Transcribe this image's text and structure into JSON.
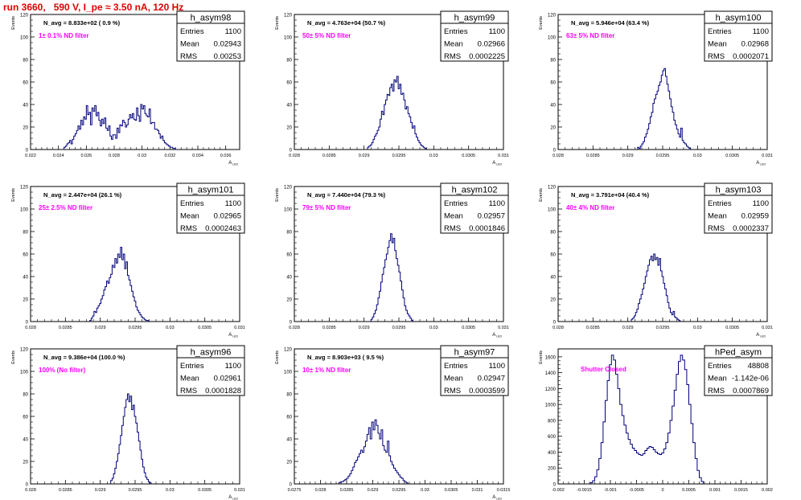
{
  "page": {
    "title": "run 3660,   590 V, I_pe ≈ 3.50 nA, 120 Hz"
  },
  "chart_data": [
    {
      "type": "histogram",
      "name": "h_asym98",
      "stats": {
        "entries": "1100",
        "mean": "0.02943",
        "rms": "0.00253"
      },
      "navg_label": "N_avg = 8.833e+02 ( 0.9 %)",
      "filter_label": "1± 0.1% ND filter",
      "xlabel": "A_LED",
      "ylabel": "Events",
      "xlim": [
        0.022,
        0.037
      ],
      "ylim": [
        0,
        120
      ],
      "xticks": [
        0.022,
        0.024,
        0.026,
        0.028,
        0.03,
        0.032,
        0.034,
        0.036
      ],
      "xtick_labels": [
        "0.022",
        "0.024",
        "0.026",
        "0.028",
        "0.03",
        "0.032",
        "0.034",
        "0.036"
      ],
      "yticks": [
        0,
        20,
        40,
        60,
        80,
        100,
        120
      ],
      "bins": {
        "lo": 0.0244,
        "width": 0.0001,
        "values": [
          2,
          3,
          5,
          6,
          8,
          5,
          9,
          12,
          14,
          17,
          21,
          18,
          26,
          22,
          29,
          27,
          39,
          31,
          33,
          22,
          37,
          34,
          39,
          30,
          33,
          26,
          21,
          27,
          23,
          28,
          19,
          17,
          21,
          12,
          9,
          13,
          13,
          10,
          19,
          15,
          22,
          21,
          26,
          24,
          20,
          22,
          27,
          31,
          28,
          32,
          27,
          26,
          37,
          30,
          25,
          40,
          36,
          39,
          32,
          30,
          29,
          36,
          23,
          24,
          24,
          18,
          18,
          17,
          14,
          10,
          12,
          8,
          6,
          5,
          4,
          3,
          2,
          2,
          1,
          1,
          0
        ]
      }
    },
    {
      "type": "histogram",
      "name": "h_asym99",
      "stats": {
        "entries": "1100",
        "mean": "0.02966",
        "rms": "0.0002225"
      },
      "navg_label": "N_avg = 4.763e+04 (50.7 %)",
      "filter_label": "50± 5% ND filter",
      "xlabel": "A_LED",
      "ylabel": "Events",
      "xlim": [
        0.028,
        0.031
      ],
      "ylim": [
        0,
        120
      ],
      "xticks": [
        0.028,
        0.0285,
        0.029,
        0.0295,
        0.03,
        0.0305,
        0.031
      ],
      "xtick_labels": [
        "0.028",
        "0.0285",
        "0.029",
        "0.0295",
        "0.03",
        "0.0305",
        "0.031"
      ],
      "yticks": [
        0,
        20,
        40,
        60,
        80,
        100,
        120
      ],
      "bins": {
        "lo": 0.02905,
        "width": 2e-05,
        "values": [
          2,
          3,
          4,
          6,
          9,
          12,
          14,
          17,
          20,
          27,
          34,
          31,
          40,
          44,
          49,
          48,
          55,
          58,
          52,
          62,
          60,
          65,
          54,
          58,
          49,
          50,
          44,
          36,
          38,
          32,
          29,
          24,
          19,
          21,
          14,
          11,
          8,
          6,
          4,
          3,
          2,
          1
        ]
      }
    },
    {
      "type": "histogram",
      "name": "h_asym100",
      "stats": {
        "entries": "1100",
        "mean": "0.02968",
        "rms": "0.0002071"
      },
      "navg_label": "N_avg = 5.946e+04 (63.4 %)",
      "filter_label": "63± 5% ND filter",
      "xlabel": "A_LED",
      "ylabel": "Events",
      "xlim": [
        0.028,
        0.031
      ],
      "ylim": [
        0,
        120
      ],
      "xticks": [
        0.028,
        0.0285,
        0.029,
        0.0295,
        0.03,
        0.0305,
        0.031
      ],
      "xtick_labels": [
        "0.028",
        "0.0285",
        "0.029",
        "0.0295",
        "0.03",
        "0.0305",
        "0.031"
      ],
      "yticks": [
        0,
        20,
        40,
        60,
        80,
        100,
        120
      ],
      "bins": {
        "lo": 0.02914,
        "width": 2e-05,
        "values": [
          2,
          1,
          3,
          5,
          7,
          11,
          14,
          18,
          23,
          29,
          33,
          41,
          45,
          49,
          52,
          57,
          60,
          66,
          70,
          72,
          65,
          58,
          52,
          45,
          38,
          33,
          26,
          22,
          18,
          14,
          11,
          19,
          8,
          6,
          5,
          3,
          2,
          1
        ]
      }
    },
    {
      "type": "histogram",
      "name": "h_asym101",
      "stats": {
        "entries": "1100",
        "mean": "0.02965",
        "rms": "0.0002463"
      },
      "navg_label": "N_avg = 2.447e+04 (26.1 %)",
      "filter_label": "25± 2.5% ND filter",
      "xlabel": "A_LED",
      "ylabel": "Events",
      "xlim": [
        0.028,
        0.031
      ],
      "ylim": [
        0,
        120
      ],
      "xticks": [
        0.028,
        0.0285,
        0.029,
        0.0295,
        0.03,
        0.0305,
        0.031
      ],
      "xtick_labels": [
        "0.028",
        "0.0285",
        "0.029",
        "0.0295",
        "0.03",
        "0.0305",
        "0.031"
      ],
      "yticks": [
        0,
        20,
        40,
        60,
        80,
        100,
        120
      ],
      "bins": {
        "lo": 0.02885,
        "width": 2e-05,
        "values": [
          1,
          3,
          5,
          9,
          8,
          12,
          14,
          16,
          20,
          23,
          28,
          31,
          36,
          34,
          39,
          42,
          50,
          48,
          56,
          52,
          60,
          57,
          66,
          55,
          60,
          47,
          53,
          41,
          37,
          32,
          27,
          22,
          18,
          13,
          10,
          8,
          6,
          4,
          3,
          2,
          1,
          1
        ]
      }
    },
    {
      "type": "histogram",
      "name": "h_asym102",
      "stats": {
        "entries": "1100",
        "mean": "0.02957",
        "rms": "0.0001846"
      },
      "navg_label": "N_avg = 7.440e+04 (79.3 %)",
      "filter_label": "79± 5% ND filter",
      "xlabel": "A_LED",
      "ylabel": "Events",
      "xlim": [
        0.028,
        0.031
      ],
      "ylim": [
        0,
        120
      ],
      "xticks": [
        0.028,
        0.0285,
        0.029,
        0.0295,
        0.03,
        0.0305,
        0.031
      ],
      "xtick_labels": [
        "0.028",
        "0.0285",
        "0.029",
        "0.0295",
        "0.03",
        "0.0305",
        "0.031"
      ],
      "yticks": [
        0,
        20,
        40,
        60,
        80,
        100,
        120
      ],
      "bins": {
        "lo": 0.0291,
        "width": 2e-05,
        "values": [
          2,
          4,
          7,
          10,
          15,
          21,
          27,
          35,
          42,
          48,
          55,
          60,
          66,
          72,
          78,
          70,
          74,
          63,
          56,
          50,
          44,
          36,
          28,
          21,
          14,
          10,
          7,
          5,
          3,
          1
        ]
      }
    },
    {
      "type": "histogram",
      "name": "h_asym103",
      "stats": {
        "entries": "1100",
        "mean": "0.02959",
        "rms": "0.0002337"
      },
      "navg_label": "N_avg = 3.791e+04 (40.4 %)",
      "filter_label": "40± 4% ND filter",
      "xlabel": "A_LED",
      "ylabel": "Events",
      "xlim": [
        0.028,
        0.031
      ],
      "ylim": [
        0,
        120
      ],
      "xticks": [
        0.028,
        0.0285,
        0.029,
        0.0295,
        0.03,
        0.0305,
        0.031
      ],
      "xtick_labels": [
        "0.028",
        "0.0285",
        "0.029",
        "0.0295",
        "0.03",
        "0.0305",
        "0.031"
      ],
      "yticks": [
        0,
        20,
        40,
        60,
        80,
        100,
        120
      ],
      "bins": {
        "lo": 0.02905,
        "width": 2e-05,
        "values": [
          2,
          3,
          5,
          8,
          11,
          16,
          20,
          24,
          29,
          34,
          40,
          45,
          50,
          55,
          58,
          54,
          60,
          55,
          57,
          50,
          56,
          45,
          40,
          34,
          29,
          23,
          17,
          12,
          8,
          6,
          9,
          4,
          3,
          2,
          1
        ]
      }
    },
    {
      "type": "histogram",
      "name": "h_asym96",
      "stats": {
        "entries": "1100",
        "mean": "0.02961",
        "rms": "0.0001828"
      },
      "navg_label": "N_avg = 9.386e+04 (100.0 %)",
      "filter_label": "100% (No filter)",
      "xlabel": "A_LED",
      "ylabel": "Events",
      "xlim": [
        0.028,
        0.031
      ],
      "ylim": [
        0,
        120
      ],
      "xticks": [
        0.028,
        0.0285,
        0.029,
        0.0295,
        0.03,
        0.0305,
        0.031
      ],
      "xtick_labels": [
        "0.028",
        "0.0285",
        "0.029",
        "0.0295",
        "0.03",
        "0.0305",
        "0.031"
      ],
      "yticks": [
        0,
        20,
        40,
        60,
        80,
        100,
        120
      ],
      "bins": {
        "lo": 0.02915,
        "width": 2e-05,
        "values": [
          3,
          5,
          9,
          14,
          20,
          27,
          35,
          43,
          52,
          60,
          68,
          75,
          80,
          73,
          78,
          66,
          70,
          60,
          54,
          46,
          38,
          30,
          22,
          15,
          10,
          6,
          4,
          2,
          1
        ]
      }
    },
    {
      "type": "histogram",
      "name": "h_asym97",
      "stats": {
        "entries": "1100",
        "mean": "0.02947",
        "rms": "0.0003599"
      },
      "navg_label": "N_avg = 8.903e+03 ( 9.5 %)",
      "filter_label": "10± 1% ND filter",
      "xlabel": "A_LED",
      "ylabel": "Events",
      "xlim": [
        0.0275,
        0.0315
      ],
      "ylim": [
        0,
        120
      ],
      "xticks": [
        0.0275,
        0.028,
        0.0285,
        0.029,
        0.0295,
        0.03,
        0.0305,
        0.031,
        0.0315
      ],
      "xtick_labels": [
        "0.0275",
        "0.028",
        "0.0285",
        "0.029",
        "0.0295",
        "0.03",
        "0.0305",
        "0.031",
        "0.0315"
      ],
      "yticks": [
        0,
        20,
        40,
        60,
        80,
        100,
        120
      ],
      "bins": {
        "lo": 0.02835,
        "width": 3e-05,
        "values": [
          1,
          2,
          2,
          3,
          4,
          5,
          7,
          9,
          12,
          15,
          19,
          21,
          24,
          27,
          30,
          28,
          33,
          38,
          44,
          50,
          40,
          55,
          48,
          57,
          52,
          45,
          40,
          48,
          34,
          30,
          28,
          38,
          25,
          20,
          17,
          14,
          12,
          10,
          8,
          6,
          5,
          3,
          2,
          1
        ]
      }
    },
    {
      "type": "histogram",
      "name": "hPed_asym",
      "stats": {
        "entries": "48808",
        "mean": "-1.142e-06",
        "rms": "0.0007869"
      },
      "filter_label": "Shutter Closed",
      "xlabel": "",
      "ylabel": "Events",
      "xlim": [
        -0.002,
        0.002
      ],
      "ylim": [
        0,
        1700
      ],
      "xticks": [
        -0.002,
        -0.0015,
        -0.001,
        -0.0005,
        0,
        0.0005,
        0.001,
        0.0015,
        0.002
      ],
      "xtick_labels": [
        "-0.002",
        "-0.0015",
        "-0.001",
        "-0.0005",
        "0",
        "0.0005",
        "0.001",
        "0.0015",
        "0.002"
      ],
      "yticks": [
        0,
        200,
        400,
        600,
        800,
        1000,
        1200,
        1400,
        1600
      ],
      "bins": {
        "lo": -0.00138,
        "width": 4e-05,
        "values": [
          15,
          40,
          90,
          180,
          320,
          520,
          780,
          1050,
          1300,
          1500,
          1620,
          1560,
          1380,
          1200,
          1000,
          860,
          740,
          640,
          560,
          500,
          450,
          420,
          390,
          370,
          360,
          380,
          420,
          450,
          470,
          460,
          430,
          400,
          380,
          370,
          390,
          440,
          520,
          640,
          800,
          980,
          1180,
          1380,
          1540,
          1620,
          1560,
          1440,
          1250,
          1000,
          760,
          520,
          320,
          170,
          80,
          30
        ]
      }
    }
  ]
}
